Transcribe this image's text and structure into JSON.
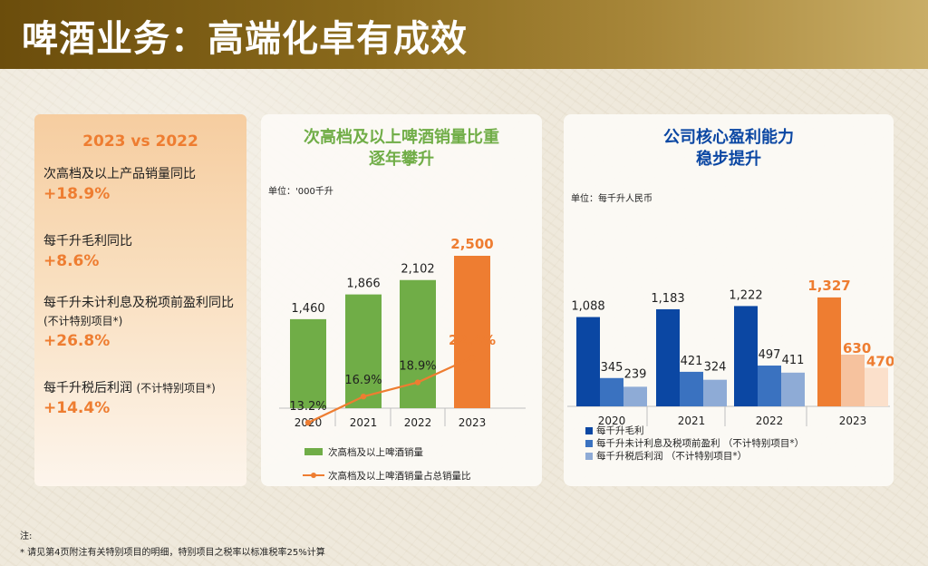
{
  "title": "啤酒业务：高端化卓有成效",
  "left_card": {
    "header": "2023 vs 2022",
    "items": [
      {
        "label": "次高档及以上产品销量同比",
        "note": "",
        "value": "+18.9%"
      },
      {
        "label": "每千升毛利同比",
        "note": "",
        "value": "+8.6%"
      },
      {
        "label": "每千升未计利息及税项前盈利同比",
        "note": "(不计特别项目*)",
        "value": "+26.8%"
      },
      {
        "label": "每千升税后利润",
        "note": "(不计特别项目*)",
        "value": "+14.4%"
      }
    ]
  },
  "chart1": {
    "title_line1": "次高档及以上啤酒销量比重",
    "title_line2": "逐年攀升",
    "unit": "单位：'000千升"
  },
  "chart2": {
    "title_line1": "公司核心盈利能力",
    "title_line2": "稳步提升",
    "unit": "单位：每千升人民币"
  },
  "colors": {
    "green": "#70ad47",
    "orange": "#ee7d31",
    "blue_dark": "#0b47a3",
    "blue_mid": "#3a72c0",
    "blue_light": "#8eabd6",
    "orange_mid": "#f6c29e",
    "orange_light": "#fbe0cb"
  },
  "chart_data": [
    {
      "type": "bar",
      "categories": [
        "2020",
        "2021",
        "2022",
        "2023"
      ],
      "series": [
        {
          "name": "次高档及以上啤酒销量",
          "type": "bar",
          "values": [
            1460,
            1866,
            2102,
            2500
          ],
          "labels": [
            "1,460",
            "1,866",
            "2,102",
            "2,500"
          ]
        },
        {
          "name": "次高档及以上啤酒销量占总销量比",
          "type": "line",
          "values": [
            13.2,
            16.9,
            18.9,
            22.4
          ],
          "labels": [
            "13.2%",
            "16.9%",
            "18.9%",
            "22.4%"
          ]
        }
      ],
      "highlight_category": "2023"
    },
    {
      "type": "bar",
      "categories": [
        "2020",
        "2021",
        "2022",
        "2023"
      ],
      "series": [
        {
          "name": "每千升毛利",
          "values": [
            1088,
            1183,
            1222,
            1327
          ],
          "labels": [
            "1,088",
            "1,183",
            "1,222",
            "1,327"
          ]
        },
        {
          "name": "每千升未计利息及税项前盈利 （不计特别项目*）",
          "values": [
            345,
            421,
            497,
            630
          ],
          "labels": [
            "345",
            "421",
            "497",
            "630"
          ]
        },
        {
          "name": "每千升税后利润 （不计特别项目*）",
          "values": [
            239,
            324,
            411,
            470
          ],
          "labels": [
            "239",
            "324",
            "411",
            "470"
          ]
        }
      ],
      "highlight_category": "2023"
    }
  ],
  "footnote": {
    "label": "注:",
    "text": "* 请见第4页附注有关特别项目的明细，特别项目之税率以标准税率25%计算"
  }
}
